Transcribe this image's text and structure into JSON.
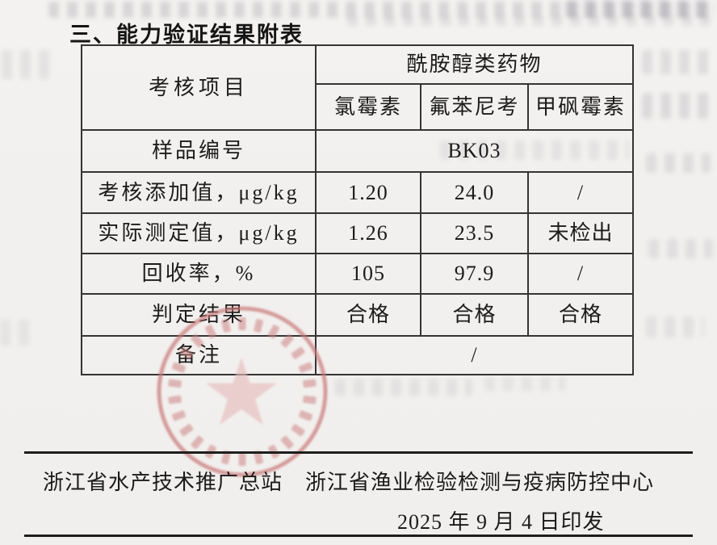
{
  "page": {
    "title": "三、能力验证结果附表"
  },
  "table": {
    "header": {
      "item_label": "考核项目",
      "drug_class": "酰胺醇类药物",
      "drugs": [
        "氯霉素",
        "氟苯尼考",
        "甲砜霉素"
      ]
    },
    "rows": [
      {
        "label": "样品编号",
        "span": "BK03"
      },
      {
        "label": "考核添加值，μg/kg",
        "values": [
          "1.20",
          "24.0",
          "/"
        ]
      },
      {
        "label": "实际测定值，μg/kg",
        "values": [
          "1.26",
          "23.5",
          "未检出"
        ]
      },
      {
        "label": "回收率，%",
        "values": [
          "105",
          "97.9",
          "/"
        ]
      },
      {
        "label": "判定结果",
        "values": [
          "合格",
          "合格",
          "合格"
        ]
      },
      {
        "label": "备注",
        "span": "/"
      }
    ]
  },
  "seal": {
    "type": "round-red-official-seal-with-star",
    "color": "#c97a7a"
  },
  "footer": {
    "org_left": "浙江省水产技术推广总站",
    "org_right": "浙江省渔业检验检测与疫病防控中心",
    "date_line": "2025 年 9 月 4 日印发"
  },
  "colors": {
    "paper": "#f2f0ee",
    "ink": "#1c1c1c",
    "table_line": "#343434",
    "seal_red": "#c97a7a"
  }
}
